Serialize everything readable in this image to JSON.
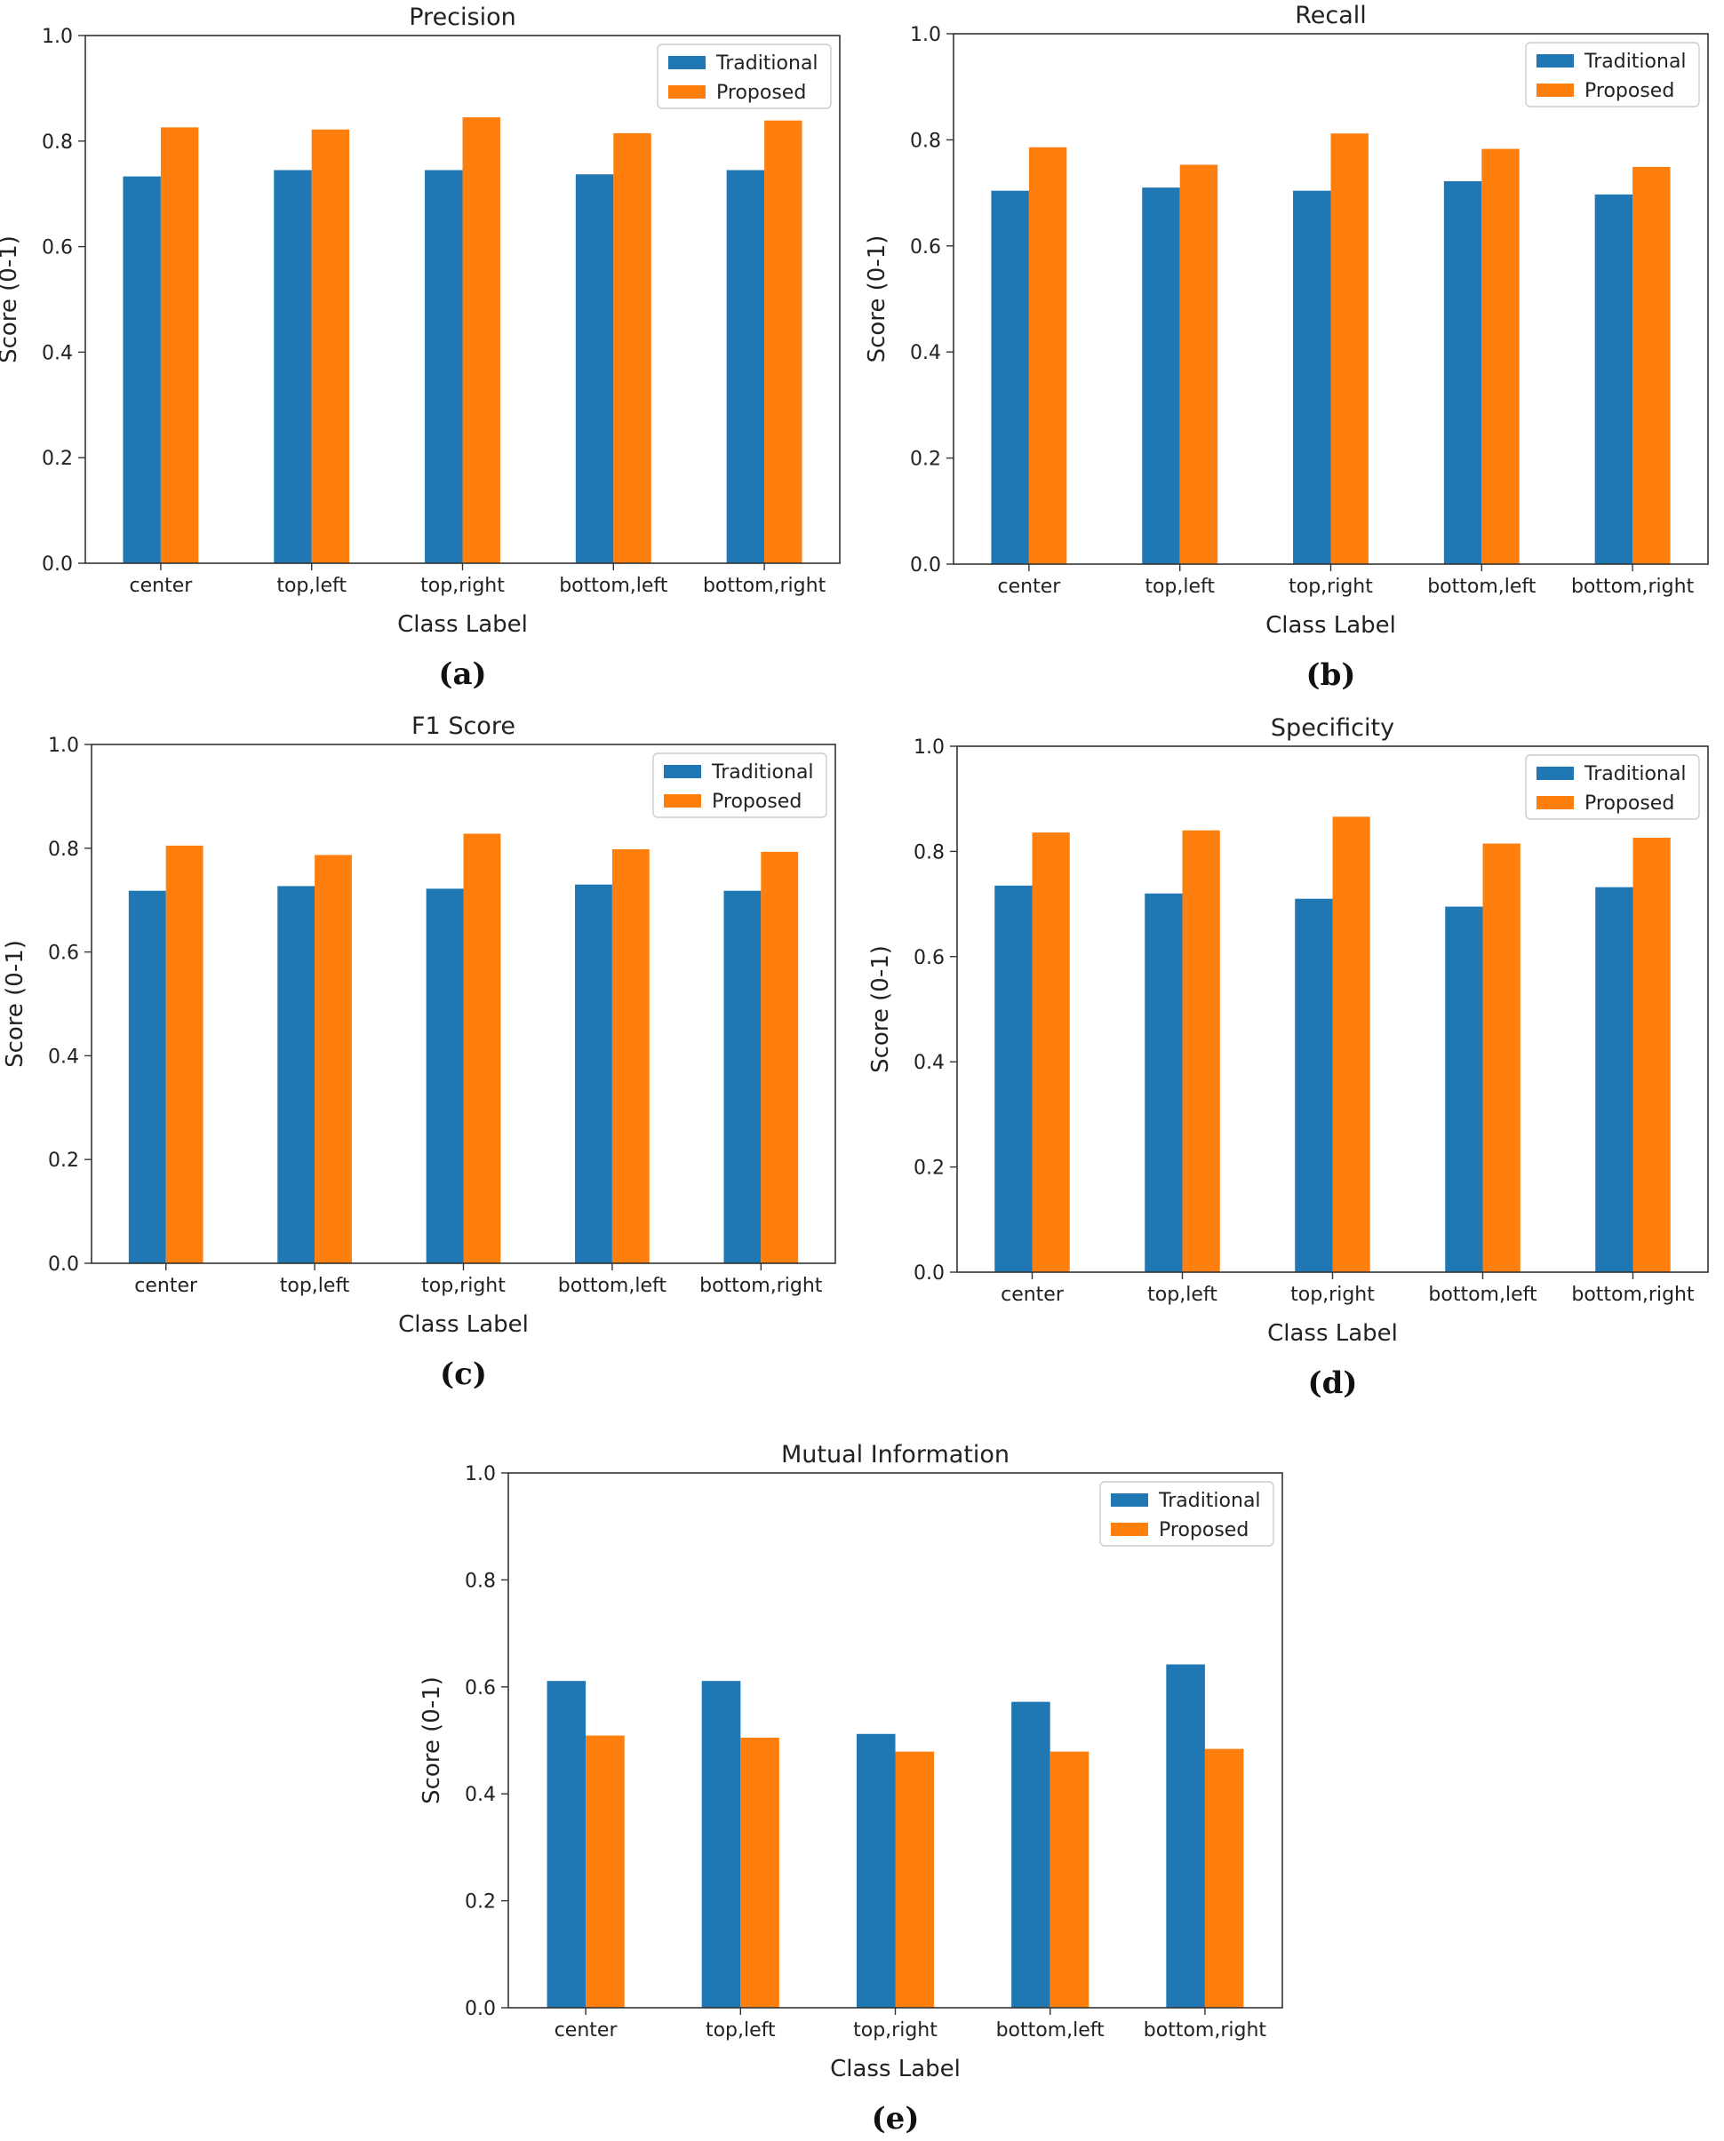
{
  "chart_data": [
    {
      "type": "bar",
      "panel": "(a)",
      "title": "Precision",
      "xlabel": "Class Label",
      "ylabel": "Score (0-1)",
      "ylim": [
        0,
        1.0
      ],
      "yticks": [
        "0.0",
        "0.2",
        "0.4",
        "0.6",
        "0.8",
        "1.0"
      ],
      "categories": [
        "center",
        "top,left",
        "top,right",
        "bottom,left",
        "bottom,right"
      ],
      "series": [
        {
          "name": "Traditional",
          "color": "#1f77b4",
          "values": [
            0.733,
            0.745,
            0.745,
            0.737,
            0.745
          ]
        },
        {
          "name": "Proposed",
          "color": "#ff7f0e",
          "values": [
            0.826,
            0.822,
            0.845,
            0.815,
            0.839
          ]
        }
      ],
      "legend_position": "top-right",
      "grid": false
    },
    {
      "type": "bar",
      "panel": "(b)",
      "title": "Recall",
      "xlabel": "Class Label",
      "ylabel": "Score (0-1)",
      "ylim": [
        0,
        1.0
      ],
      "yticks": [
        "0.0",
        "0.2",
        "0.4",
        "0.6",
        "0.8",
        "1.0"
      ],
      "categories": [
        "center",
        "top,left",
        "top,right",
        "bottom,left",
        "bottom,right"
      ],
      "series": [
        {
          "name": "Traditional",
          "color": "#1f77b4",
          "values": [
            0.704,
            0.71,
            0.704,
            0.722,
            0.697
          ]
        },
        {
          "name": "Proposed",
          "color": "#ff7f0e",
          "values": [
            0.786,
            0.753,
            0.812,
            0.783,
            0.749
          ]
        }
      ],
      "legend_position": "top-right",
      "grid": false
    },
    {
      "type": "bar",
      "panel": "(c)",
      "title": "F1 Score",
      "xlabel": "Class Label",
      "ylabel": "Score (0-1)",
      "ylim": [
        0,
        1.0
      ],
      "yticks": [
        "0.0",
        "0.2",
        "0.4",
        "0.6",
        "0.8",
        "1.0"
      ],
      "categories": [
        "center",
        "top,left",
        "top,right",
        "bottom,left",
        "bottom,right"
      ],
      "series": [
        {
          "name": "Traditional",
          "color": "#1f77b4",
          "values": [
            0.718,
            0.727,
            0.722,
            0.73,
            0.718
          ]
        },
        {
          "name": "Proposed",
          "color": "#ff7f0e",
          "values": [
            0.805,
            0.787,
            0.828,
            0.798,
            0.793
          ]
        }
      ],
      "legend_position": "top-right",
      "grid": false
    },
    {
      "type": "bar",
      "panel": "(d)",
      "title": "Specificity",
      "xlabel": "Class Label",
      "ylabel": "Score (0-1)",
      "ylim": [
        0,
        1.0
      ],
      "yticks": [
        "0.0",
        "0.2",
        "0.4",
        "0.6",
        "0.8",
        "1.0"
      ],
      "categories": [
        "center",
        "top,left",
        "top,right",
        "bottom,left",
        "bottom,right"
      ],
      "series": [
        {
          "name": "Traditional",
          "color": "#1f77b4",
          "values": [
            0.735,
            0.72,
            0.71,
            0.695,
            0.732
          ]
        },
        {
          "name": "Proposed",
          "color": "#ff7f0e",
          "values": [
            0.836,
            0.84,
            0.866,
            0.815,
            0.826
          ]
        }
      ],
      "legend_position": "top-right",
      "grid": false
    },
    {
      "type": "bar",
      "panel": "(e)",
      "title": "Mutual Information",
      "xlabel": "Class Label",
      "ylabel": "Score (0-1)",
      "ylim": [
        0,
        1.0
      ],
      "yticks": [
        "0.0",
        "0.2",
        "0.4",
        "0.6",
        "0.8",
        "1.0"
      ],
      "categories": [
        "center",
        "top,left",
        "top,right",
        "bottom,left",
        "bottom,right"
      ],
      "series": [
        {
          "name": "Traditional",
          "color": "#1f77b4",
          "values": [
            0.611,
            0.611,
            0.512,
            0.572,
            0.642
          ]
        },
        {
          "name": "Proposed",
          "color": "#ff7f0e",
          "values": [
            0.509,
            0.505,
            0.479,
            0.479,
            0.484
          ]
        }
      ],
      "legend_position": "top-right",
      "grid": false
    }
  ]
}
